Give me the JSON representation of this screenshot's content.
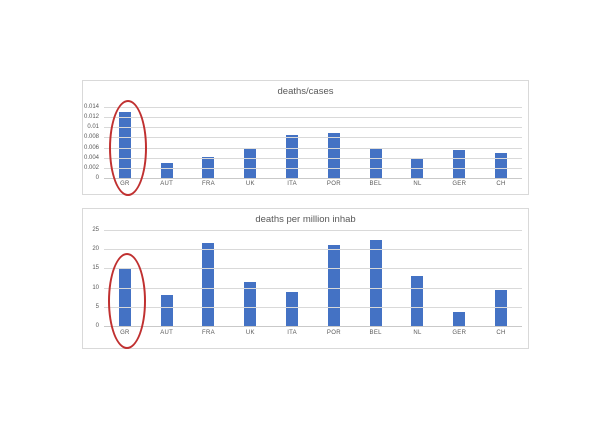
{
  "page": {
    "background": "#ffffff"
  },
  "colors": {
    "bar": "#4472c4",
    "gridline": "#d9d9d9",
    "panel_border": "#d9d9d9",
    "axis_text": "#595959",
    "highlight": "#c03030"
  },
  "chart_data": [
    {
      "type": "bar",
      "title": "deaths/cases",
      "categories": [
        "GR",
        "AUT",
        "FRA",
        "UK",
        "ITA",
        "POR",
        "BEL",
        "NL",
        "GER",
        "CH"
      ],
      "values": [
        0.013,
        0.003,
        0.0042,
        0.0058,
        0.0085,
        0.0089,
        0.006,
        0.0039,
        0.0055,
        0.0049
      ],
      "ylim": [
        0,
        0.014
      ],
      "yticks": [
        "0",
        "0.002",
        "0.004",
        "0.006",
        "0.008",
        "0.01",
        "0.012",
        "0.014"
      ],
      "grid": true,
      "legend": "none",
      "highlight": {
        "category": "GR",
        "shape": "ellipse",
        "color": "#c03030"
      }
    },
    {
      "type": "bar",
      "title": "deaths per million inhab",
      "categories": [
        "GR",
        "AUT",
        "FRA",
        "UK",
        "ITA",
        "POR",
        "BEL",
        "NL",
        "GER",
        "CH"
      ],
      "values": [
        15.2,
        8,
        21.6,
        11.5,
        8.9,
        21,
        22.3,
        13,
        3.6,
        9.5
      ],
      "ylim": [
        0,
        25
      ],
      "yticks": [
        "0",
        "5",
        "10",
        "15",
        "20",
        "25"
      ],
      "grid": true,
      "legend": "none",
      "highlight": {
        "category": "GR",
        "shape": "ellipse",
        "color": "#c03030"
      }
    }
  ]
}
